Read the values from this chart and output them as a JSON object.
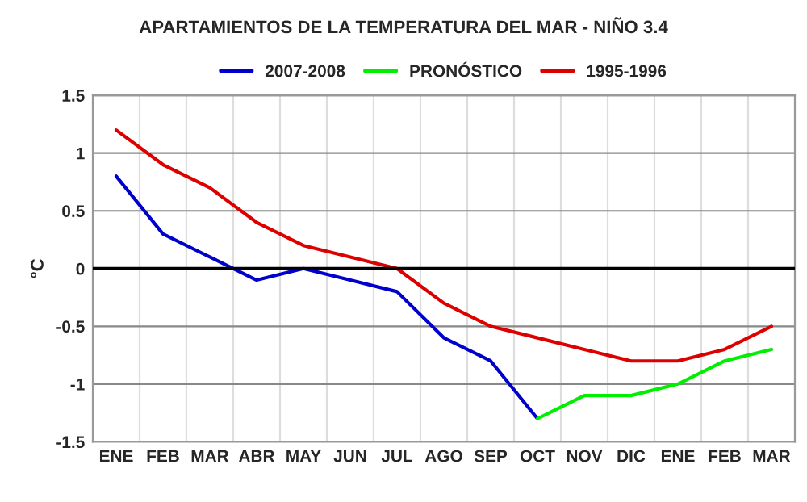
{
  "chart_data": {
    "type": "line",
    "title": "APARTAMIENTOS DE LA TEMPERATURA DEL MAR - NIÑO 3.4",
    "ylabel": "°C",
    "categories": [
      "ENE",
      "FEB",
      "MAR",
      "ABR",
      "MAY",
      "JUN",
      "JUL",
      "AGO",
      "SEP",
      "OCT",
      "NOV",
      "DIC",
      "ENE",
      "FEB",
      "MAR"
    ],
    "series": [
      {
        "name": "2007-2008",
        "color": "#0000cc",
        "values": [
          0.8,
          0.3,
          0.1,
          -0.1,
          0,
          -0.1,
          -0.2,
          -0.6,
          -0.8,
          -1.3,
          null,
          null,
          null,
          null,
          null
        ]
      },
      {
        "name": "PRONÓSTICO",
        "color": "#00ee00",
        "values": [
          null,
          null,
          null,
          null,
          null,
          null,
          null,
          null,
          null,
          -1.3,
          -1.1,
          -1.1,
          -1.0,
          -0.8,
          -0.7
        ]
      },
      {
        "name": "1995-1996",
        "color": "#dd0000",
        "values": [
          1.2,
          0.9,
          0.7,
          0.4,
          0.2,
          0.1,
          0,
          -0.3,
          -0.5,
          -0.6,
          -0.7,
          -0.8,
          -0.8,
          -0.7,
          -0.5
        ]
      }
    ],
    "ylim": [
      -1.5,
      1.5
    ],
    "yticks": [
      -1.5,
      -1,
      -0.5,
      0,
      0.5,
      1,
      1.5
    ],
    "ref_lines": [
      {
        "axis": "y",
        "value": 0,
        "color": "#000000"
      }
    ],
    "grid": true,
    "legend": "top",
    "marker": "none",
    "line_style": "solid"
  }
}
